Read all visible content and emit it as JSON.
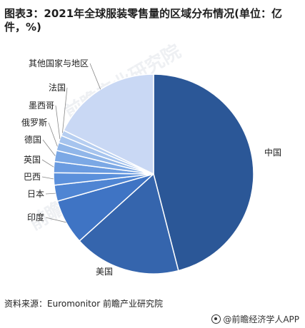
{
  "title": "图表3：2021年全球服装零售量的区域分布情况(单位：亿件，%)",
  "source": "资料来源：Euromonitor 前瞻产业研究院",
  "brand": "@前瞻经济学人APP",
  "watermark": "前瞻产业研究院",
  "chart_data": {
    "type": "pie",
    "title": "图表3：2021年全球服装零售量的区域分布情况(单位：亿件，%)",
    "unit": "%",
    "legend": "none",
    "slices": [
      {
        "label": "中国",
        "value": 46.0,
        "color": "#2b5797"
      },
      {
        "label": "美国",
        "value": 17.3,
        "color": "#3565ad"
      },
      {
        "label": "印度",
        "value": 7.3,
        "color": "#3f74c4"
      },
      {
        "label": "日本",
        "value": 2.6,
        "color": "#4f85d3"
      },
      {
        "label": "巴西",
        "value": 2.0,
        "color": "#5b90db"
      },
      {
        "label": "英国",
        "value": 1.8,
        "color": "#6a9be0"
      },
      {
        "label": "德国",
        "value": 1.8,
        "color": "#7ba8e5"
      },
      {
        "label": "俄罗斯",
        "value": 1.3,
        "color": "#90b6e9"
      },
      {
        "label": "墨西哥",
        "value": 1.2,
        "color": "#a6c4ee"
      },
      {
        "label": "法国",
        "value": 0.9,
        "color": "#b6cef1"
      },
      {
        "label": "其他国家与地区",
        "value": 17.8,
        "color": "#c9d8f4"
      }
    ]
  }
}
